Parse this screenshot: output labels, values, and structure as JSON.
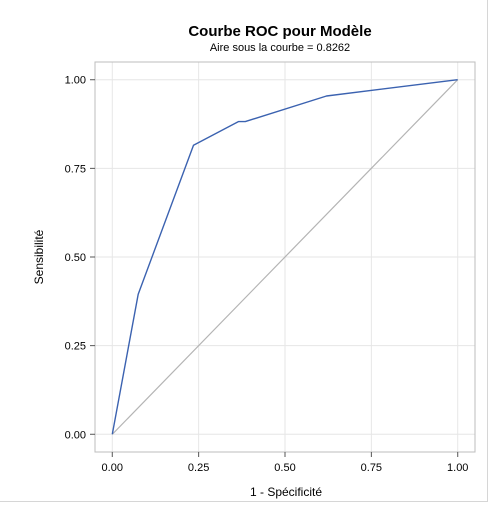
{
  "chart_data": {
    "type": "line",
    "title": "Courbe ROC pour Modèle",
    "subtitle": "Aire sous la courbe = 0.8262",
    "xlabel": "1 - Spécificité",
    "ylabel": "Sensibilité",
    "xlim": [
      -0.05,
      1.05
    ],
    "ylim": [
      -0.05,
      1.05
    ],
    "xticks": [
      "0.00",
      "0.25",
      "0.50",
      "0.75",
      "1.00"
    ],
    "yticks": [
      "0.00",
      "0.25",
      "0.50",
      "0.75",
      "1.00"
    ],
    "grid": true,
    "series": [
      {
        "color": "#3b62b0",
        "x": [
          0.0,
          0.075,
          0.235,
          0.365,
          0.385,
          0.62,
          1.0
        ],
        "y": [
          0.0,
          0.395,
          0.815,
          0.882,
          0.882,
          0.954,
          1.0
        ]
      },
      {
        "color": "#b4b4b4",
        "x": [
          0.0,
          1.0
        ],
        "y": [
          0.0,
          1.0
        ]
      }
    ]
  }
}
